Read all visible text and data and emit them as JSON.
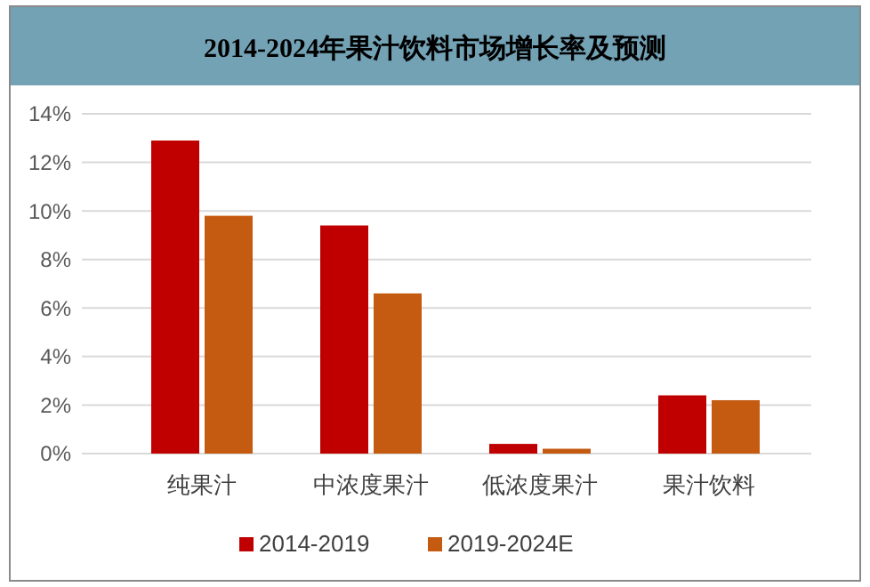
{
  "chart_data": {
    "type": "bar",
    "title": "2014-2024年果汁饮料市场增长率及预测",
    "categories": [
      "纯果汁",
      "中浓度果汁",
      "低浓度果汁",
      "果汁饮料"
    ],
    "series": [
      {
        "name": "2014-2019",
        "color": "#c00000",
        "values": [
          12.9,
          9.4,
          0.4,
          2.4
        ]
      },
      {
        "name": "2019-2024E",
        "color": "#c55a11",
        "values": [
          9.8,
          6.6,
          0.2,
          2.2
        ]
      }
    ],
    "ylim": [
      0,
      14
    ],
    "yticks": [
      {
        "value": 0,
        "label": "0%"
      },
      {
        "value": 2,
        "label": "2%"
      },
      {
        "value": 4,
        "label": "4%"
      },
      {
        "value": 6,
        "label": "6%"
      },
      {
        "value": 8,
        "label": "8%"
      },
      {
        "value": 10,
        "label": "10%"
      },
      {
        "value": 12,
        "label": "12%"
      },
      {
        "value": 14,
        "label": "14%"
      }
    ],
    "grid": "y",
    "legend": "bottom"
  }
}
